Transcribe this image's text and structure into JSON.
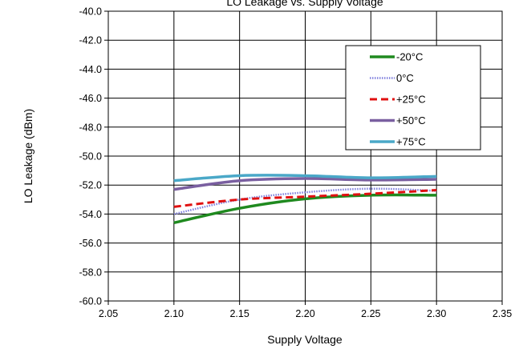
{
  "chart_data": {
    "type": "line",
    "title": "LO Leakage vs. Supply Voltage",
    "xlabel": "Supply Voltage",
    "ylabel": "LO Leakage (dBm)",
    "xlim": [
      2.05,
      2.35
    ],
    "ylim": [
      -60,
      -40
    ],
    "x_ticks": [
      2.05,
      2.1,
      2.15,
      2.2,
      2.25,
      2.3,
      2.35
    ],
    "x_tick_labels": [
      "2.05",
      "2.10",
      "2.15",
      "2.20",
      "2.25",
      "2.30",
      "2.35"
    ],
    "y_ticks": [
      -40,
      -42,
      -44,
      -46,
      -48,
      -50,
      -52,
      -54,
      -56,
      -58,
      -60
    ],
    "y_tick_labels": [
      "-40.0",
      "-42.0",
      "-44.0",
      "-46.0",
      "-48.0",
      "-50.0",
      "-52.0",
      "-54.0",
      "-56.0",
      "-58.0",
      "-60.0"
    ],
    "grid": true,
    "legend_position": "top-right",
    "x": [
      2.1,
      2.15,
      2.2,
      2.25,
      2.3
    ],
    "series": [
      {
        "name": "-20°C",
        "values": [
          -54.6,
          -53.6,
          -52.95,
          -52.7,
          -52.7
        ],
        "color": "#1f8a1f",
        "style": "solid"
      },
      {
        "name": "0°C",
        "values": [
          -54.0,
          -53.0,
          -52.5,
          -52.25,
          -52.4
        ],
        "color": "#8080dd",
        "style": "dotted"
      },
      {
        "name": "+25°C",
        "values": [
          -53.5,
          -53.0,
          -52.8,
          -52.6,
          -52.35
        ],
        "color": "#e01010",
        "style": "dashed"
      },
      {
        "name": "+50°C",
        "values": [
          -52.3,
          -51.7,
          -51.55,
          -51.65,
          -51.6
        ],
        "color": "#7a5fa0",
        "style": "solid"
      },
      {
        "name": "+75°C",
        "values": [
          -51.7,
          -51.35,
          -51.35,
          -51.5,
          -51.4
        ],
        "color": "#4aa8c8",
        "style": "solid"
      }
    ]
  }
}
